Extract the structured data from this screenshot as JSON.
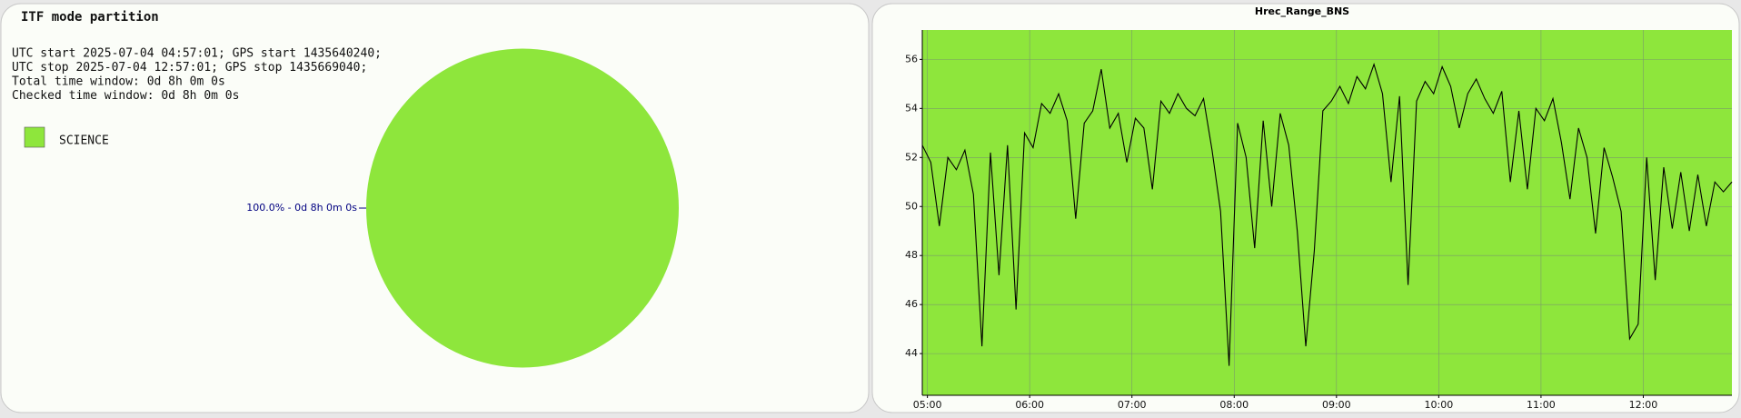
{
  "chart_data": [
    {
      "type": "pie",
      "title": "ITF mode partition",
      "info_lines": [
        "UTC start 2025-07-04 04:57:01; GPS start 1435640240;",
        "UTC stop 2025-07-04 12:57:01; GPS stop 1435669040;",
        "Total time window: 0d 8h 0m 0s",
        "Checked time window: 0d 8h 0m 0s"
      ],
      "categories": [
        "SCIENCE"
      ],
      "values": [
        100
      ],
      "value_labels": [
        "100.0% - 0d 8h 0m 0s"
      ],
      "colors": [
        "#8ee63c"
      ]
    },
    {
      "type": "line",
      "title": "Hrec_Range_BNS",
      "x": [
        "04:57",
        "05:02",
        "05:07",
        "05:12",
        "05:17",
        "05:22",
        "05:27",
        "05:32",
        "05:37",
        "05:42",
        "05:47",
        "05:52",
        "05:57",
        "06:02",
        "06:07",
        "06:12",
        "06:17",
        "06:22",
        "06:27",
        "06:32",
        "06:37",
        "06:42",
        "06:47",
        "06:52",
        "06:57",
        "07:02",
        "07:07",
        "07:12",
        "07:17",
        "07:22",
        "07:27",
        "07:32",
        "07:37",
        "07:42",
        "07:47",
        "07:52",
        "07:57",
        "08:02",
        "08:07",
        "08:12",
        "08:17",
        "08:22",
        "08:27",
        "08:32",
        "08:37",
        "08:42",
        "08:47",
        "08:52",
        "08:57",
        "09:02",
        "09:07",
        "09:12",
        "09:17",
        "09:22",
        "09:27",
        "09:32",
        "09:37",
        "09:42",
        "09:47",
        "09:52",
        "09:57",
        "10:02",
        "10:07",
        "10:12",
        "10:17",
        "10:22",
        "10:27",
        "10:32",
        "10:37",
        "10:42",
        "10:47",
        "10:52",
        "10:57",
        "11:02",
        "11:07",
        "11:12",
        "11:17",
        "11:22",
        "11:27",
        "11:32",
        "11:37",
        "11:42",
        "11:47",
        "11:52",
        "11:57",
        "12:02",
        "12:07",
        "12:12",
        "12:17",
        "12:22",
        "12:27",
        "12:32",
        "12:37",
        "12:42",
        "12:47",
        "12:52"
      ],
      "values": [
        52.5,
        51.8,
        49.2,
        52.0,
        51.5,
        52.3,
        50.5,
        44.3,
        52.2,
        47.2,
        52.5,
        45.8,
        53.0,
        52.4,
        54.2,
        53.8,
        54.6,
        53.5,
        49.5,
        53.4,
        53.9,
        55.6,
        53.2,
        53.8,
        51.8,
        53.6,
        53.2,
        50.7,
        54.3,
        53.8,
        54.6,
        54.0,
        53.7,
        54.4,
        52.3,
        49.8,
        43.5,
        53.4,
        52.0,
        48.3,
        53.5,
        50.0,
        53.8,
        52.5,
        49.0,
        44.3,
        48.2,
        53.9,
        54.3,
        54.9,
        54.2,
        55.3,
        54.8,
        55.8,
        54.6,
        51.0,
        54.5,
        46.8,
        54.3,
        55.1,
        54.6,
        55.7,
        54.9,
        53.2,
        54.6,
        55.2,
        54.4,
        53.8,
        54.7,
        51.0,
        53.9,
        50.7,
        54.0,
        53.5,
        54.4,
        52.6,
        50.3,
        53.2,
        52.0,
        48.9,
        52.4,
        51.2,
        49.8,
        44.6,
        45.2,
        52.0,
        47.0,
        51.6,
        49.1,
        51.4,
        49.0,
        51.3,
        49.2,
        51.0,
        50.6,
        51.0
      ],
      "color": "#000000",
      "plot_color": "#8ee63c",
      "xlim": [
        "04:57",
        "12:52"
      ],
      "xticks": [
        "05:00",
        "06:00",
        "07:00",
        "08:00",
        "09:00",
        "10:00",
        "11:00",
        "12:00"
      ],
      "ylim": [
        42.3,
        57.2
      ],
      "yticks": [
        44,
        46,
        48,
        50,
        52,
        54,
        56
      ],
      "grid": true
    }
  ]
}
